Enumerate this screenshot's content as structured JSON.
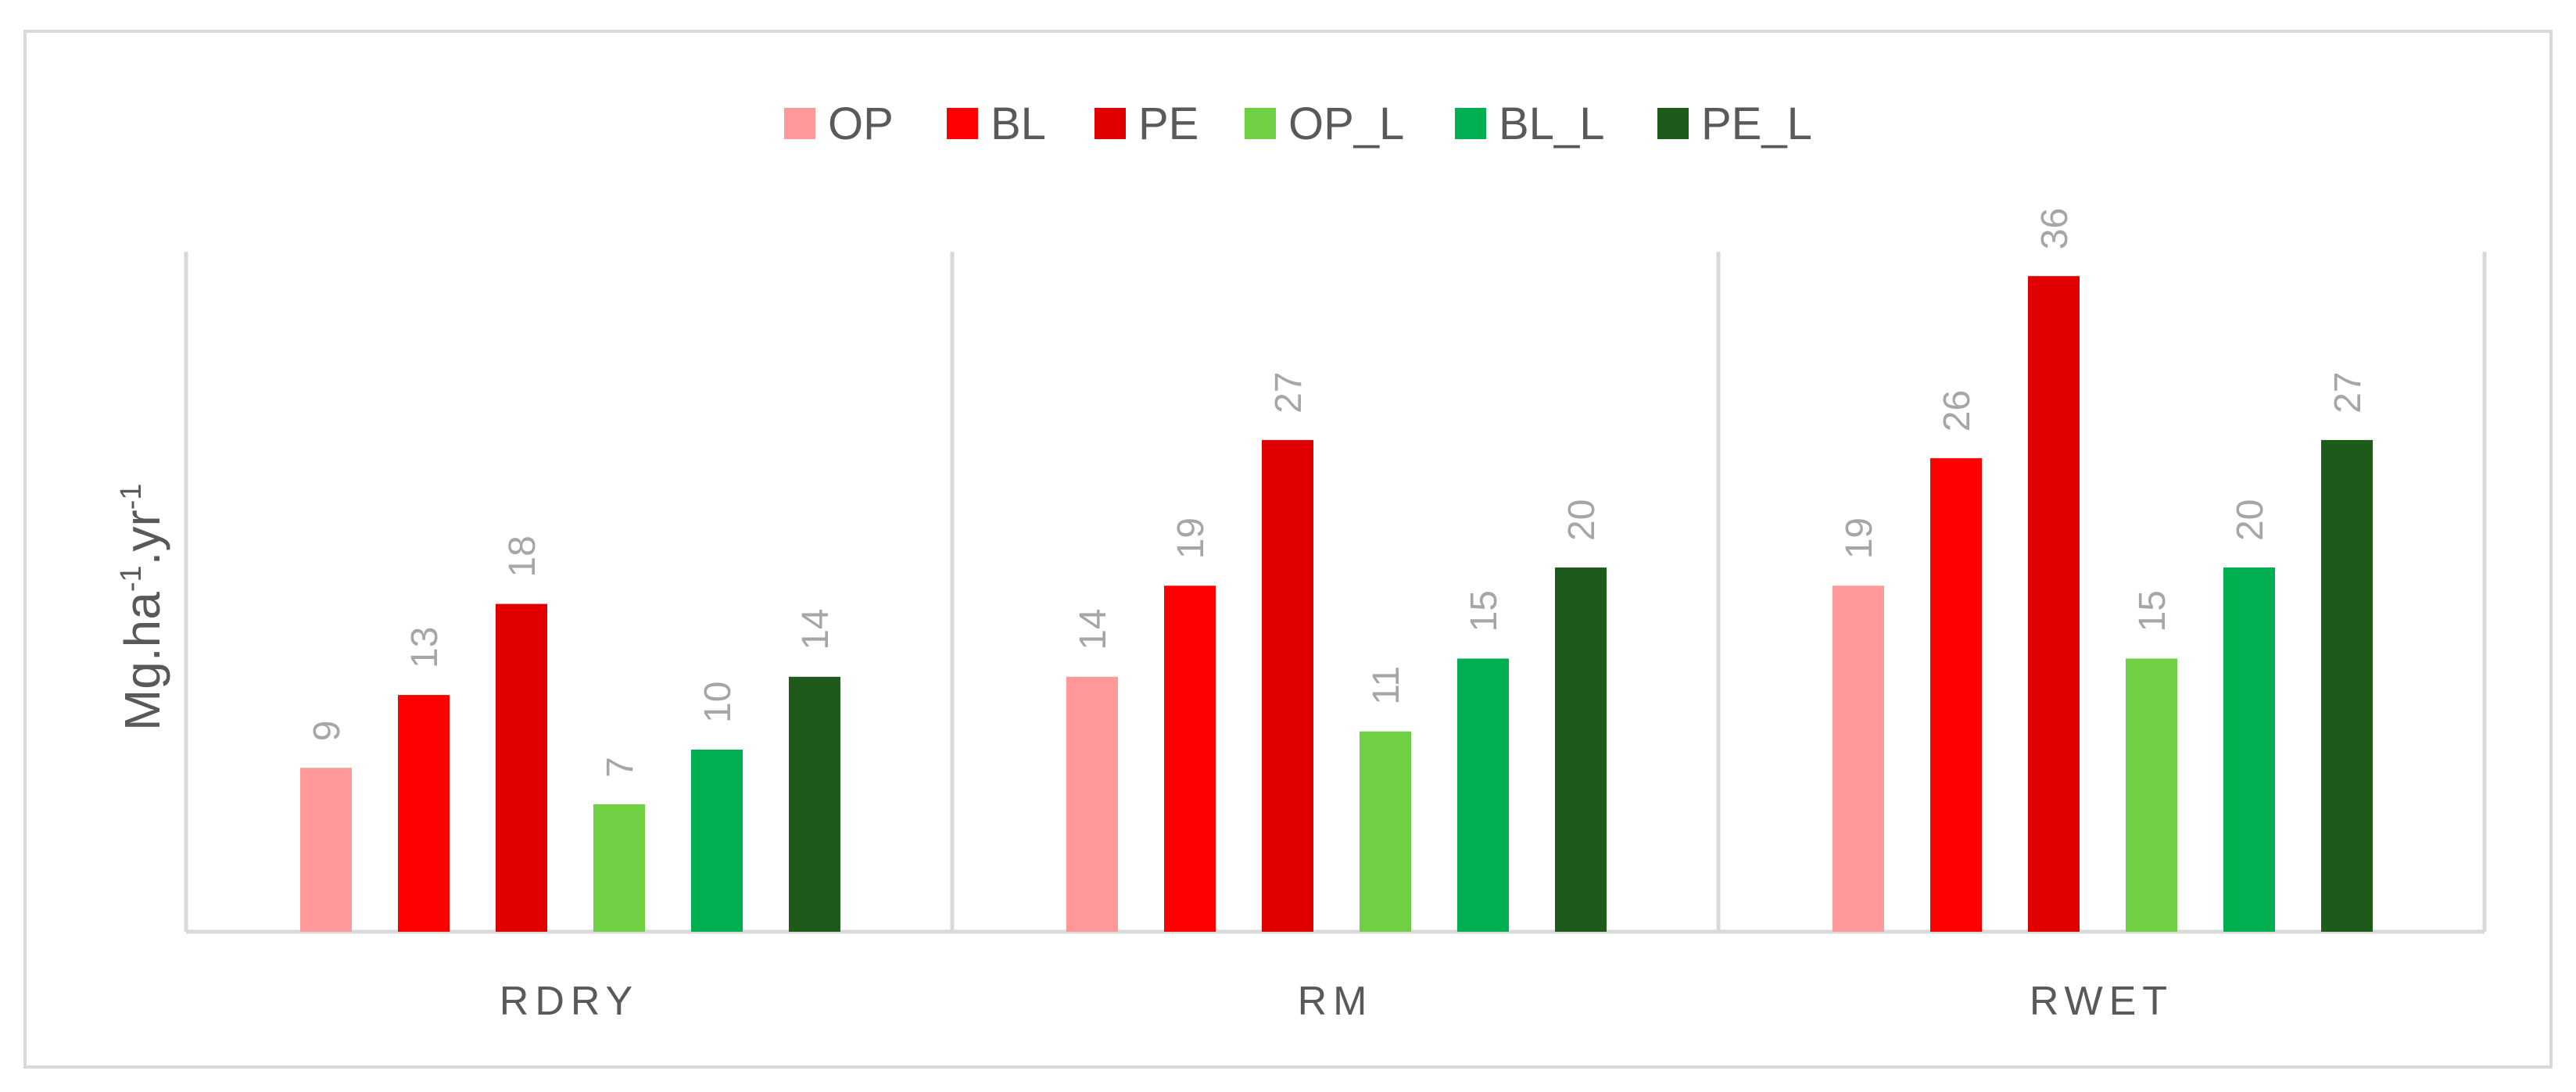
{
  "chart_data": {
    "type": "bar",
    "categories": [
      "RDRY",
      "RM",
      "RWET"
    ],
    "series": [
      {
        "name": "OP",
        "color": "#ff9999",
        "values": [
          9,
          14,
          19
        ]
      },
      {
        "name": "BL",
        "color": "#ff0000",
        "values": [
          13,
          19,
          26
        ]
      },
      {
        "name": "PE",
        "color": "#e00000",
        "values": [
          18,
          27,
          36
        ]
      },
      {
        "name": "OP_L",
        "color": "#70d044",
        "values": [
          7,
          11,
          15
        ]
      },
      {
        "name": "BL_L",
        "color": "#00b050",
        "values": [
          10,
          15,
          20
        ]
      },
      {
        "name": "PE_L",
        "color": "#1e5a1a",
        "values": [
          14,
          20,
          27
        ]
      }
    ],
    "ylabel": {
      "base": "Mg.ha",
      "sup1": "-1",
      "mid": ".yr",
      "sup2": "-1"
    },
    "ylim": [
      0,
      40
    ],
    "legend_position": "top",
    "grid": false
  }
}
